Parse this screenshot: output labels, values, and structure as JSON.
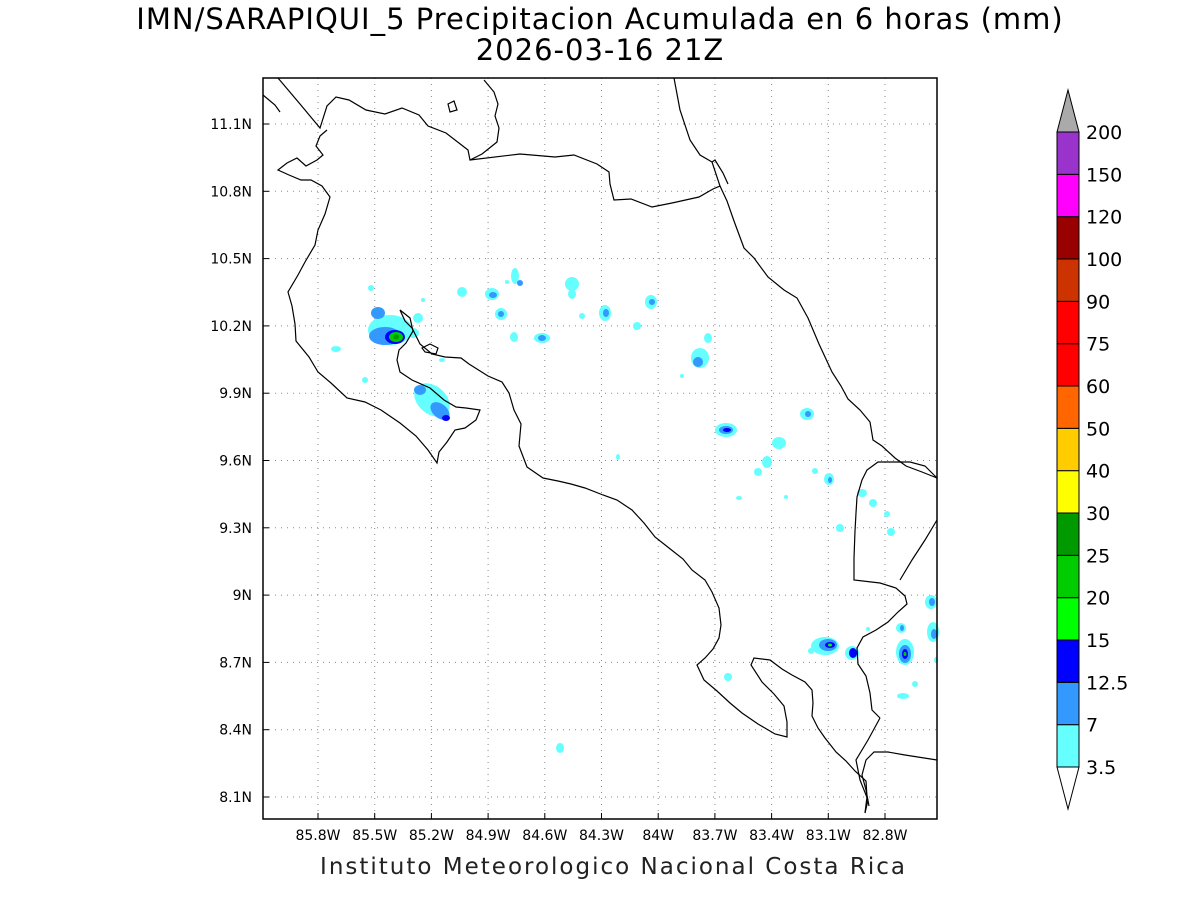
{
  "title": {
    "line1": "IMN/SARAPIQUI_5 Precipitacion Acumulada en 6 horas (mm)",
    "line2": "2026-03-16 21Z"
  },
  "credit": "Instituto Meteorologico Nacional Costa Rica",
  "map": {
    "lon_range": [
      -86.0,
      -83.0
    ],
    "lat_range": [
      8.0,
      11.3
    ],
    "lon_ticks": [
      {
        "value": -85.8,
        "label": "85.8W"
      },
      {
        "value": -85.5,
        "label": "85.5W"
      },
      {
        "value": -85.2,
        "label": "85.2W"
      },
      {
        "value": -84.9,
        "label": "84.9W"
      },
      {
        "value": -84.6,
        "label": "84.6W"
      },
      {
        "value": -84.3,
        "label": "84.3W"
      },
      {
        "value": -84.0,
        "label": "84W"
      },
      {
        "value": -83.7,
        "label": "83.7W"
      },
      {
        "value": -83.4,
        "label": "83.4W"
      },
      {
        "value": -83.1,
        "label": "83.1W"
      },
      {
        "value": -82.8,
        "label": "82.8W"
      }
    ],
    "lat_ticks": [
      {
        "value": 11.1,
        "label": "11.1N"
      },
      {
        "value": 10.8,
        "label": "10.8N"
      },
      {
        "value": 10.5,
        "label": "10.5N"
      },
      {
        "value": 10.2,
        "label": "10.2N"
      },
      {
        "value": 9.9,
        "label": "9.9N"
      },
      {
        "value": 9.6,
        "label": "9.6N"
      },
      {
        "value": 9.3,
        "label": "9.3N"
      },
      {
        "value": 9.0,
        "label": "9N"
      },
      {
        "value": 8.7,
        "label": "8.7N"
      },
      {
        "value": 8.4,
        "label": "8.4N"
      },
      {
        "value": 8.1,
        "label": "8.1N"
      }
    ],
    "grid": "dotted"
  },
  "legend": {
    "unit": "mm",
    "levels": [
      {
        "label": "3.5",
        "color": "#66ffff"
      },
      {
        "label": "7",
        "color": "#3399ff"
      },
      {
        "label": "12.5",
        "color": "#0000ff"
      },
      {
        "label": "15",
        "color": "#00ff00"
      },
      {
        "label": "20",
        "color": "#00cc00"
      },
      {
        "label": "25",
        "color": "#009900"
      },
      {
        "label": "30",
        "color": "#ffff00"
      },
      {
        "label": "40",
        "color": "#ffcc00"
      },
      {
        "label": "50",
        "color": "#ff6600"
      },
      {
        "label": "60",
        "color": "#ff0000"
      },
      {
        "label": "75",
        "color": "#ff0000"
      },
      {
        "label": "90",
        "color": "#cc3300"
      },
      {
        "label": "100",
        "color": "#990000"
      },
      {
        "label": "120",
        "color": "#ff00ff"
      },
      {
        "label": "150",
        "color": "#9933cc"
      },
      {
        "label": "200",
        "color": "#f2f2f2"
      }
    ],
    "top_arrow_color": "#aaaaaa",
    "bottom_arrow_color": "#ffffff"
  },
  "precip_cells": [
    {
      "name": "northwest-maxima",
      "level": 5
    },
    {
      "name": "peninsula-cell",
      "level": 2
    },
    {
      "name": "central-cell",
      "level": 2
    },
    {
      "name": "caribbean-cell",
      "level": 3
    },
    {
      "name": "south-pacific-cell",
      "level": 3
    },
    {
      "name": "southeast-cell",
      "level": 4
    }
  ]
}
